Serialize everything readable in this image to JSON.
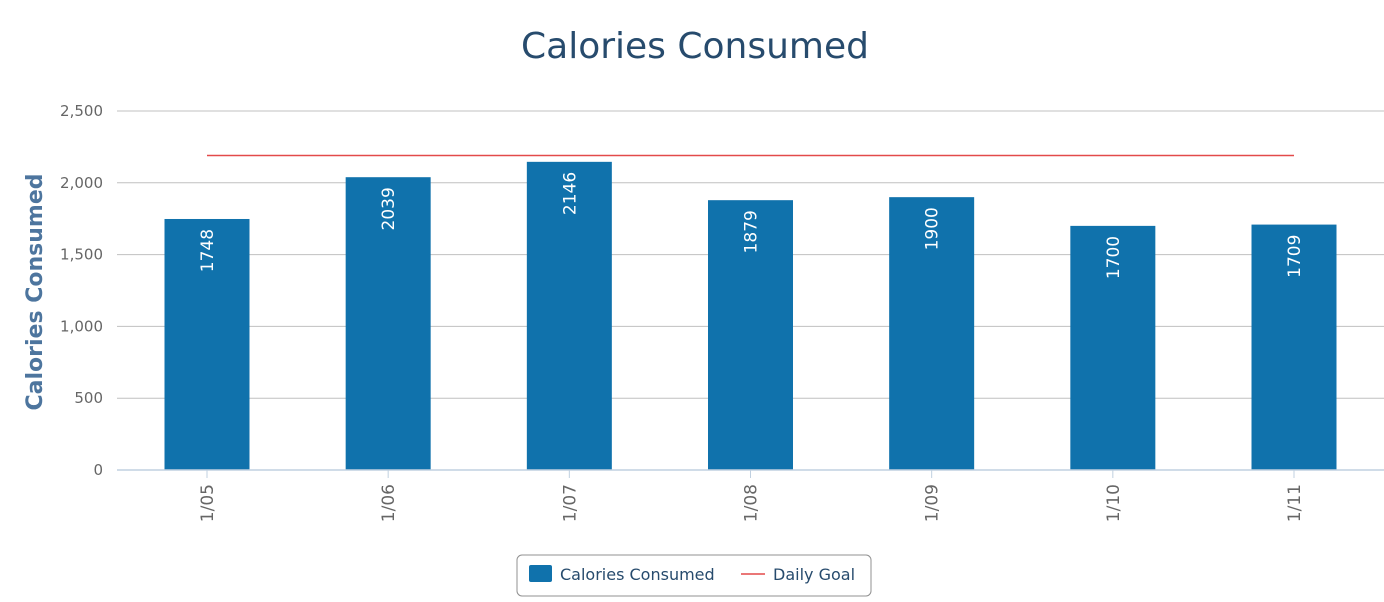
{
  "chart_data": {
    "type": "bar",
    "title": "Calories Consumed",
    "xlabel": "",
    "ylabel": "Calories Consumed",
    "ylim": [
      0,
      2500
    ],
    "yticks": [
      0,
      500,
      1000,
      1500,
      2000,
      2500
    ],
    "ytick_labels": [
      "0",
      "500",
      "1,000",
      "1,500",
      "2,000",
      "2,500"
    ],
    "categories": [
      "1/05",
      "1/06",
      "1/07",
      "1/08",
      "1/09",
      "1/10",
      "1/11"
    ],
    "series": [
      {
        "name": "Calories Consumed",
        "type": "bar",
        "values": [
          1748,
          2039,
          2146,
          1879,
          1900,
          1700,
          1709
        ],
        "color": "#1072ac",
        "data_labels": [
          "1748",
          "2039",
          "2146",
          "1879",
          "1900",
          "1700",
          "1709"
        ]
      },
      {
        "name": "Daily Goal",
        "type": "line",
        "values": [
          2190,
          2190,
          2190,
          2190,
          2190,
          2190,
          2190
        ],
        "color": "#e34a4a"
      }
    ],
    "grid": true,
    "legend_position": "bottom-center"
  }
}
